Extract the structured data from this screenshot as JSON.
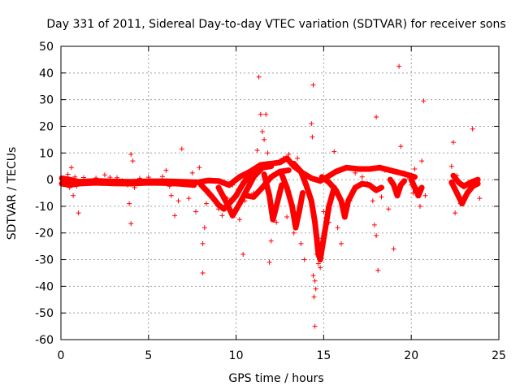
{
  "chart_data": {
    "type": "scatter",
    "title": "Day 331 of 2011, Sidereal Day-to-day VTEC variation (SDTVAR) for receiver sons",
    "xlabel": "GPS time / hours",
    "ylabel": "SDTVAR / TECUs",
    "xlim": [
      0,
      25
    ],
    "ylim": [
      -60,
      50
    ],
    "xticks": [
      0,
      5,
      10,
      15,
      20,
      25
    ],
    "yticks": [
      -60,
      -50,
      -40,
      -30,
      -20,
      -10,
      0,
      10,
      20,
      30,
      40,
      50
    ],
    "grid": true,
    "marker": "+",
    "color": "#ff0000",
    "series": [
      {
        "name": "SDTVAR",
        "points": [
          [
            0.2,
            0.5
          ],
          [
            0.3,
            -1.5
          ],
          [
            0.4,
            2.0
          ],
          [
            0.5,
            -3.0
          ],
          [
            0.6,
            4.5
          ],
          [
            0.7,
            -6.0
          ],
          [
            0.8,
            1.0
          ],
          [
            0.9,
            -2.5
          ],
          [
            1.0,
            -12.5
          ],
          [
            1.1,
            -1.0
          ],
          [
            1.3,
            0.8
          ],
          [
            1.6,
            -0.5
          ],
          [
            2.0,
            0.6
          ],
          [
            2.3,
            -0.3
          ],
          [
            2.5,
            1.8
          ],
          [
            2.8,
            0.9
          ],
          [
            3.0,
            -0.8
          ],
          [
            3.2,
            0.7
          ],
          [
            3.5,
            -0.4
          ],
          [
            3.8,
            -2.0
          ],
          [
            3.9,
            -9.0
          ],
          [
            4.0,
            9.5
          ],
          [
            4.0,
            -16.5
          ],
          [
            4.1,
            7.0
          ],
          [
            4.2,
            -3.0
          ],
          [
            4.5,
            0.5
          ],
          [
            5.0,
            0.9
          ],
          [
            5.5,
            -0.8
          ],
          [
            5.8,
            1.2
          ],
          [
            6.0,
            3.5
          ],
          [
            6.2,
            -2.5
          ],
          [
            6.3,
            -6.0
          ],
          [
            6.5,
            -13.5
          ],
          [
            6.7,
            -8.0
          ],
          [
            6.9,
            11.5
          ],
          [
            7.0,
            -1.5
          ],
          [
            7.3,
            -7.0
          ],
          [
            7.5,
            2.5
          ],
          [
            7.7,
            -12.0
          ],
          [
            7.9,
            4.5
          ],
          [
            8.1,
            -24.0
          ],
          [
            8.1,
            -35.0
          ],
          [
            8.2,
            -18.0
          ],
          [
            8.3,
            -9.0
          ],
          [
            8.5,
            -6.0
          ],
          [
            9.0,
            -11.0
          ],
          [
            9.2,
            -13.5
          ],
          [
            9.5,
            -7.0
          ],
          [
            9.8,
            -2.0
          ],
          [
            10.0,
            -5.5
          ],
          [
            10.2,
            -15.0
          ],
          [
            10.4,
            -28.0
          ],
          [
            10.5,
            -8.0
          ],
          [
            10.7,
            1.5
          ],
          [
            10.9,
            3.0
          ],
          [
            11.0,
            -5.0
          ],
          [
            11.2,
            11.0
          ],
          [
            11.3,
            38.5
          ],
          [
            11.4,
            24.5
          ],
          [
            11.5,
            18.0
          ],
          [
            11.6,
            15.0
          ],
          [
            11.7,
            24.5
          ],
          [
            11.8,
            10.0
          ],
          [
            11.9,
            -31.0
          ],
          [
            12.0,
            -23.0
          ],
          [
            12.1,
            -10.0
          ],
          [
            12.3,
            -16.0
          ],
          [
            12.5,
            7.0
          ],
          [
            12.7,
            8.0
          ],
          [
            12.9,
            -14.0
          ],
          [
            13.0,
            9.5
          ],
          [
            13.3,
            -20.0
          ],
          [
            13.5,
            8.0
          ],
          [
            13.7,
            -24.0
          ],
          [
            13.9,
            -30.0
          ],
          [
            14.1,
            1.0
          ],
          [
            14.3,
            21.0
          ],
          [
            14.35,
            16.0
          ],
          [
            14.4,
            35.5
          ],
          [
            14.4,
            -36.0
          ],
          [
            14.45,
            -44.0
          ],
          [
            14.5,
            -55.0
          ],
          [
            14.5,
            -38.0
          ],
          [
            14.55,
            -41.0
          ],
          [
            14.6,
            -28.0
          ],
          [
            14.7,
            -31.5
          ],
          [
            14.8,
            -33.0
          ],
          [
            14.9,
            -22.0
          ],
          [
            15.0,
            -12.0
          ],
          [
            15.3,
            -16.0
          ],
          [
            15.6,
            10.5
          ],
          [
            15.8,
            -18.0
          ],
          [
            16.0,
            -24.0
          ],
          [
            16.2,
            -12.0
          ],
          [
            16.5,
            -8.0
          ],
          [
            16.8,
            2.5
          ],
          [
            17.2,
            1.0
          ],
          [
            17.5,
            -1.5
          ],
          [
            17.8,
            -8.0
          ],
          [
            17.9,
            -17.0
          ],
          [
            18.0,
            23.5
          ],
          [
            18.0,
            -21.0
          ],
          [
            18.1,
            -34.0
          ],
          [
            18.3,
            -6.5
          ],
          [
            18.5,
            3.5
          ],
          [
            18.7,
            -11.0
          ],
          [
            19.0,
            -26.0
          ],
          [
            19.3,
            42.5
          ],
          [
            19.4,
            12.5
          ],
          [
            19.6,
            2.5
          ],
          [
            19.8,
            1.0
          ],
          [
            20.0,
            -2.0
          ],
          [
            20.1,
            -5.0
          ],
          [
            20.2,
            4.0
          ],
          [
            20.4,
            -3.5
          ],
          [
            20.5,
            -10.0
          ],
          [
            20.6,
            7.0
          ],
          [
            20.7,
            29.5
          ],
          [
            20.8,
            -6.0
          ],
          [
            22.3,
            5.0
          ],
          [
            22.4,
            14.0
          ],
          [
            22.5,
            -12.5
          ],
          [
            22.6,
            1.5
          ],
          [
            22.8,
            -9.0
          ],
          [
            23.0,
            -2.0
          ],
          [
            23.3,
            -4.0
          ],
          [
            23.5,
            19.0
          ],
          [
            23.7,
            -1.0
          ],
          [
            23.9,
            -7.0
          ]
        ],
        "curves": [
          [
            [
              0.05,
              0.5
            ],
            [
              0.5,
              0.0
            ],
            [
              1.0,
              -0.8
            ],
            [
              2.0,
              -0.5
            ],
            [
              3.0,
              -0.7
            ],
            [
              4.0,
              -0.8
            ],
            [
              5.0,
              -0.6
            ],
            [
              6.0,
              -0.6
            ],
            [
              7.0,
              -0.8
            ],
            [
              7.8,
              -1.0
            ],
            [
              8.4,
              -0.3
            ],
            [
              9.0,
              -0.5
            ],
            [
              9.6,
              -2.0
            ],
            [
              10.2,
              1.0
            ],
            [
              10.8,
              3.0
            ],
            [
              11.4,
              5.5
            ],
            [
              12.0,
              6.0
            ],
            [
              12.5,
              6.5
            ],
            [
              12.9,
              8.0
            ],
            [
              13.3,
              5.0
            ],
            [
              13.8,
              2.5
            ],
            [
              14.3,
              0.5
            ],
            [
              14.8,
              -0.5
            ],
            [
              15.2,
              1.0
            ],
            [
              15.7,
              3.0
            ],
            [
              16.3,
              4.5
            ],
            [
              17.0,
              4.0
            ],
            [
              17.6,
              4.0
            ],
            [
              18.2,
              4.5
            ],
            [
              18.8,
              3.5
            ],
            [
              19.4,
              2.5
            ],
            [
              19.8,
              1.8
            ],
            [
              20.2,
              1.0
            ]
          ],
          [
            [
              0.05,
              -1.5
            ],
            [
              0.5,
              -2.0
            ],
            [
              1.0,
              -1.5
            ],
            [
              2.0,
              -1.2
            ],
            [
              3.0,
              -1.4
            ],
            [
              4.0,
              -1.5
            ],
            [
              5.0,
              -1.2
            ],
            [
              6.0,
              -1.3
            ],
            [
              6.8,
              -1.6
            ],
            [
              7.6,
              -2.0
            ]
          ],
          [
            [
              8.0,
              -2.0
            ],
            [
              8.3,
              -4.0
            ],
            [
              8.7,
              -7.0
            ],
            [
              9.0,
              -9.5
            ],
            [
              9.3,
              -11.0
            ],
            [
              9.6,
              -9.0
            ],
            [
              10.0,
              -6.0
            ],
            [
              10.4,
              -1.5
            ],
            [
              10.8,
              2.0
            ],
            [
              11.2,
              4.0
            ]
          ],
          [
            [
              9.0,
              -3.0
            ],
            [
              9.4,
              -8.0
            ],
            [
              9.8,
              -13.5
            ],
            [
              10.2,
              -9.0
            ],
            [
              10.6,
              -4.0
            ],
            [
              11.0,
              1.0
            ],
            [
              11.5,
              4.5
            ],
            [
              12.0,
              5.0
            ]
          ],
          [
            [
              10.6,
              -6.0
            ],
            [
              11.0,
              -6.5
            ],
            [
              11.5,
              -3.0
            ],
            [
              12.0,
              1.0
            ],
            [
              12.5,
              3.0
            ],
            [
              13.0,
              3.5
            ]
          ],
          [
            [
              11.6,
              2.0
            ],
            [
              11.9,
              -6.0
            ],
            [
              12.1,
              -15.0
            ],
            [
              12.3,
              -10.0
            ],
            [
              12.6,
              -2.0
            ]
          ],
          [
            [
              12.6,
              2.0
            ],
            [
              12.9,
              -3.0
            ],
            [
              13.2,
              -10.0
            ],
            [
              13.4,
              -18.0
            ],
            [
              13.6,
              -12.0
            ],
            [
              13.8,
              -5.0
            ]
          ],
          [
            [
              13.3,
              6.0
            ],
            [
              13.7,
              3.0
            ],
            [
              14.0,
              -2.0
            ],
            [
              14.3,
              -8.0
            ],
            [
              14.5,
              -16.0
            ],
            [
              14.6,
              -22.0
            ],
            [
              14.7,
              -28.0
            ],
            [
              14.8,
              -30.0
            ],
            [
              15.0,
              -22.0
            ],
            [
              15.3,
              -10.0
            ],
            [
              15.6,
              -3.0
            ]
          ],
          [
            [
              14.9,
              1.0
            ],
            [
              15.3,
              -1.0
            ],
            [
              15.7,
              -4.0
            ],
            [
              16.0,
              -8.0
            ],
            [
              16.2,
              -14.0
            ],
            [
              16.4,
              -8.0
            ],
            [
              16.8,
              -3.0
            ],
            [
              17.2,
              -1.5
            ],
            [
              17.6,
              -2.0
            ],
            [
              18.0,
              -4.0
            ],
            [
              18.3,
              -3.0
            ]
          ],
          [
            [
              18.8,
              0.0
            ],
            [
              19.0,
              -2.0
            ],
            [
              19.2,
              -6.0
            ],
            [
              19.4,
              -2.0
            ],
            [
              19.6,
              -0.5
            ]
          ],
          [
            [
              20.0,
              0.0
            ],
            [
              20.2,
              -3.0
            ],
            [
              20.4,
              -6.0
            ],
            [
              20.6,
              -3.0
            ]
          ],
          [
            [
              22.3,
              -1.0
            ],
            [
              22.6,
              -5.0
            ],
            [
              22.9,
              -9.0
            ],
            [
              23.2,
              -5.0
            ],
            [
              23.5,
              -2.5
            ],
            [
              23.8,
              -1.5
            ]
          ],
          [
            [
              22.4,
              1.5
            ],
            [
              22.7,
              -1.0
            ],
            [
              23.0,
              -2.5
            ],
            [
              23.4,
              -1.0
            ],
            [
              23.8,
              0.0
            ]
          ]
        ]
      }
    ]
  }
}
